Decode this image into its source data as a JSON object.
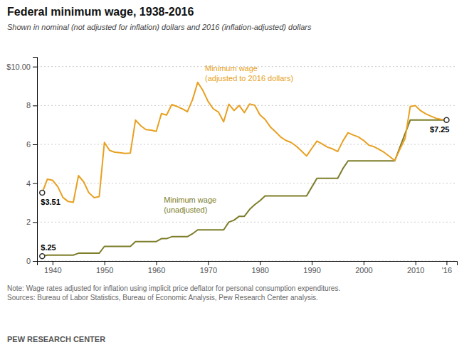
{
  "chart_data": {
    "type": "line",
    "title": "Federal minimum wage, 1938-2016",
    "subtitle": "Shown in nominal (not adjusted for inflation) dollars and 2016 (inflation-adjusted) dollars",
    "note": "Note: Wage rates adjusted for inflation using implicit price deflator for personal consumption expenditures.\nSources: Bureau of Labor Statistics, Bureau of Economic Analysis, Pew Research Center analysis.",
    "footer": "PEW RESEARCH CENTER",
    "x": [
      1938,
      1939,
      1940,
      1941,
      1942,
      1943,
      1944,
      1945,
      1946,
      1947,
      1948,
      1949,
      1950,
      1951,
      1952,
      1953,
      1954,
      1955,
      1956,
      1957,
      1958,
      1959,
      1960,
      1961,
      1962,
      1963,
      1964,
      1965,
      1966,
      1967,
      1968,
      1969,
      1970,
      1971,
      1972,
      1973,
      1974,
      1975,
      1976,
      1977,
      1978,
      1979,
      1980,
      1981,
      1982,
      1983,
      1984,
      1985,
      1986,
      1987,
      1988,
      1989,
      1990,
      1991,
      1992,
      1993,
      1994,
      1995,
      1996,
      1997,
      1998,
      1999,
      2000,
      2001,
      2002,
      2003,
      2004,
      2005,
      2006,
      2007,
      2008,
      2009,
      2010,
      2011,
      2012,
      2013,
      2014,
      2015,
      2016
    ],
    "series": [
      {
        "name": "Minimum wage\n(unadjusted)",
        "color": "#7d7d2a",
        "values": [
          0.25,
          0.3,
          0.3,
          0.3,
          0.3,
          0.3,
          0.3,
          0.4,
          0.4,
          0.4,
          0.4,
          0.4,
          0.75,
          0.75,
          0.75,
          0.75,
          0.75,
          0.75,
          1.0,
          1.0,
          1.0,
          1.0,
          1.0,
          1.15,
          1.15,
          1.25,
          1.25,
          1.25,
          1.25,
          1.4,
          1.6,
          1.6,
          1.6,
          1.6,
          1.6,
          1.6,
          2.0,
          2.1,
          2.3,
          2.3,
          2.65,
          2.9,
          3.1,
          3.35,
          3.35,
          3.35,
          3.35,
          3.35,
          3.35,
          3.35,
          3.35,
          3.35,
          3.8,
          4.25,
          4.25,
          4.25,
          4.25,
          4.25,
          4.75,
          5.15,
          5.15,
          5.15,
          5.15,
          5.15,
          5.15,
          5.15,
          5.15,
          5.15,
          5.15,
          5.85,
          6.55,
          7.25,
          7.25,
          7.25,
          7.25,
          7.25,
          7.25,
          7.25,
          7.25
        ]
      },
      {
        "name": "Minimum wage\n(adjusted to 2016 dollars)",
        "color": "#E8A020",
        "values": [
          3.51,
          4.21,
          4.15,
          3.83,
          3.27,
          3.06,
          3.02,
          4.39,
          4.07,
          3.51,
          3.26,
          3.31,
          6.1,
          5.69,
          5.6,
          5.57,
          5.53,
          5.55,
          7.25,
          6.96,
          6.76,
          6.73,
          6.67,
          7.58,
          7.51,
          8.05,
          7.95,
          7.83,
          7.68,
          8.3,
          9.19,
          8.77,
          8.21,
          7.83,
          7.66,
          7.16,
          8.07,
          7.74,
          8.0,
          7.63,
          8.08,
          8.01,
          7.52,
          7.28,
          6.9,
          6.65,
          6.38,
          6.2,
          6.1,
          5.91,
          5.66,
          5.4,
          5.79,
          6.17,
          6.02,
          5.86,
          5.77,
          5.63,
          6.17,
          6.6,
          6.48,
          6.38,
          6.2,
          5.96,
          5.88,
          5.74,
          5.58,
          5.38,
          5.17,
          5.75,
          6.3,
          7.95,
          7.99,
          7.73,
          7.57,
          7.45,
          7.34,
          7.28,
          7.25
        ]
      }
    ],
    "annotations": [
      {
        "text": "$.25",
        "x": 1938,
        "y": 0.25
      },
      {
        "text": "$3.51",
        "x": 1938,
        "y": 3.51
      },
      {
        "text": "$7.25",
        "x": 2016,
        "y": 7.25
      }
    ],
    "xlim": [
      1937,
      2018
    ],
    "xticks": [
      1940,
      1950,
      1960,
      1970,
      1980,
      1990,
      2000,
      2010,
      {
        "value": 2016,
        "label": "'16"
      }
    ],
    "ylim": [
      0,
      10.5
    ],
    "yticks": [
      0,
      2,
      4,
      6,
      8,
      {
        "value": 10,
        "label": "$10.00"
      }
    ],
    "grid": true
  }
}
